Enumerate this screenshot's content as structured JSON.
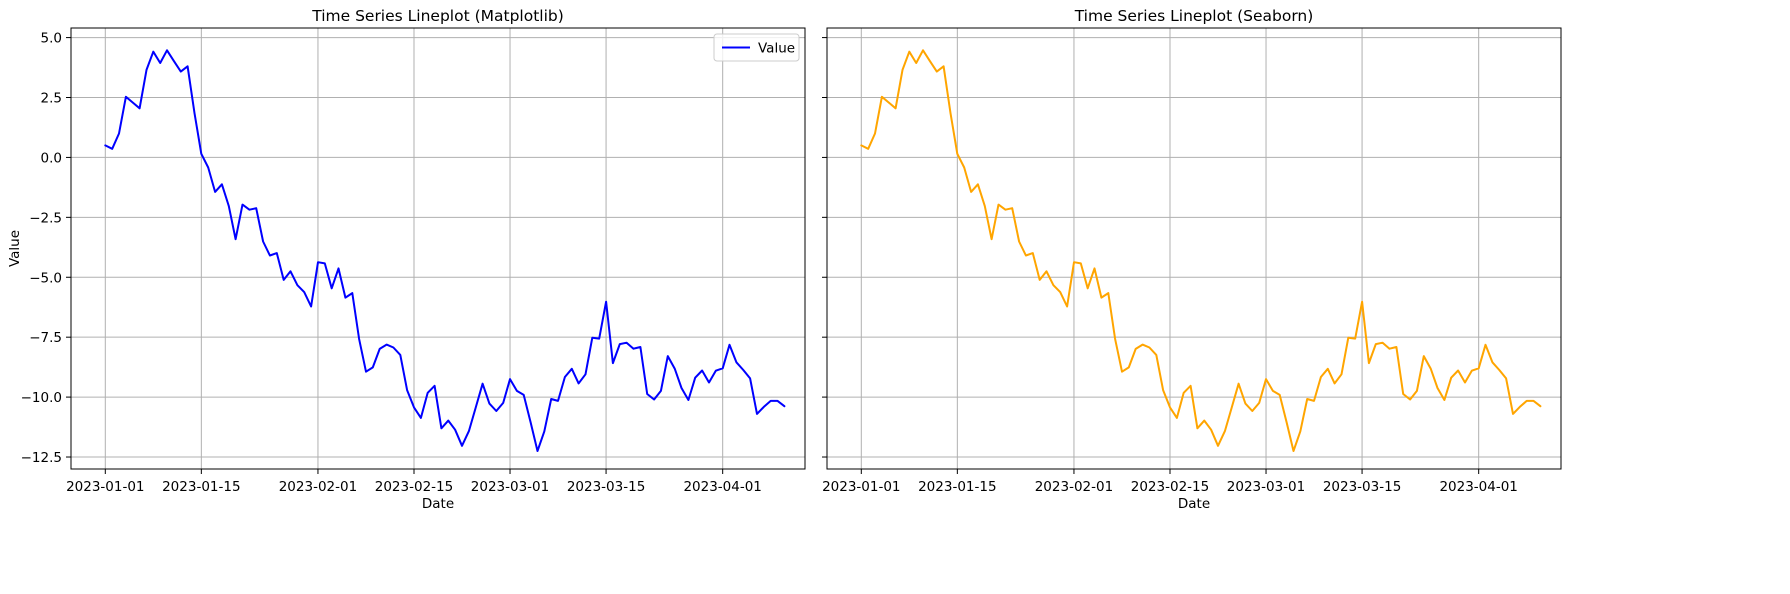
{
  "chart_data": [
    {
      "type": "line",
      "title": "Time Series Lineplot (Matplotlib)",
      "xlabel": "Date",
      "ylabel": "Value",
      "color": "#0000ff",
      "legend": {
        "entries": [
          "Value"
        ],
        "placement": "upper right"
      },
      "grid": true,
      "xlim": [
        "2022-12-27",
        "2023-04-13"
      ],
      "ylim": [
        -13.0,
        5.4
      ],
      "x_ticks": [
        "2023-01-01",
        "2023-01-15",
        "2023-02-01",
        "2023-02-15",
        "2023-03-01",
        "2023-03-15",
        "2023-04-01"
      ],
      "y_ticks": [
        "5.0",
        "2.5",
        "0.0",
        "−2.5",
        "−5.0",
        "−7.5",
        "−10.0",
        "−12.5"
      ],
      "series": [
        {
          "name": "Value",
          "start_date": "2023-01-01",
          "frequency": "daily",
          "values": [
            0.5,
            0.36,
            1.0,
            2.53,
            2.29,
            2.05,
            3.65,
            4.41,
            3.94,
            4.47,
            4.02,
            3.58,
            3.8,
            1.85,
            0.15,
            -0.42,
            -1.44,
            -1.12,
            -2.03,
            -3.41,
            -1.97,
            -2.18,
            -2.12,
            -3.51,
            -4.09,
            -3.99,
            -5.11,
            -4.75,
            -5.33,
            -5.62,
            -6.22,
            -4.37,
            -4.42,
            -5.46,
            -4.63,
            -5.85,
            -5.66,
            -7.57,
            -8.94,
            -8.76,
            -7.99,
            -7.81,
            -7.93,
            -8.24,
            -9.71,
            -10.43,
            -10.87,
            -9.82,
            -9.53,
            -11.3,
            -10.98,
            -11.36,
            -12.03,
            -11.42,
            -10.44,
            -9.44,
            -10.27,
            -10.58,
            -10.24,
            -9.25,
            -9.74,
            -9.91,
            -11.05,
            -12.25,
            -11.43,
            -10.08,
            -10.16,
            -9.16,
            -8.82,
            -9.43,
            -9.05,
            -7.52,
            -7.56,
            -6.02,
            -8.58,
            -7.79,
            -7.73,
            -7.98,
            -7.91,
            -9.87,
            -10.1,
            -9.74,
            -8.29,
            -8.81,
            -9.62,
            -10.12,
            -9.19,
            -8.89,
            -9.39,
            -8.9,
            -8.8,
            -7.82,
            -8.55,
            -8.87,
            -9.22,
            -10.7,
            -10.41,
            -10.16,
            -10.16,
            -10.38
          ]
        }
      ]
    },
    {
      "type": "line",
      "title": "Time Series Lineplot (Seaborn)",
      "xlabel": "Date",
      "ylabel": "",
      "color": "#ffa500",
      "grid": true,
      "xlim": [
        "2022-12-27",
        "2023-04-13"
      ],
      "ylim": [
        -13.0,
        5.4
      ],
      "x_ticks": [
        "2023-01-01",
        "2023-01-15",
        "2023-02-01",
        "2023-02-15",
        "2023-03-01",
        "2023-03-15",
        "2023-04-01"
      ],
      "series": [
        {
          "start_date": "2023-01-01",
          "frequency": "daily",
          "values": [
            0.5,
            0.36,
            1.0,
            2.53,
            2.29,
            2.05,
            3.65,
            4.41,
            3.94,
            4.47,
            4.02,
            3.58,
            3.8,
            1.85,
            0.15,
            -0.42,
            -1.44,
            -1.12,
            -2.03,
            -3.41,
            -1.97,
            -2.18,
            -2.12,
            -3.51,
            -4.09,
            -3.99,
            -5.11,
            -4.75,
            -5.33,
            -5.62,
            -6.22,
            -4.37,
            -4.42,
            -5.46,
            -4.63,
            -5.85,
            -5.66,
            -7.57,
            -8.94,
            -8.76,
            -7.99,
            -7.81,
            -7.93,
            -8.24,
            -9.71,
            -10.43,
            -10.87,
            -9.82,
            -9.53,
            -11.3,
            -10.98,
            -11.36,
            -12.03,
            -11.42,
            -10.44,
            -9.44,
            -10.27,
            -10.58,
            -10.24,
            -9.25,
            -9.74,
            -9.91,
            -11.05,
            -12.25,
            -11.43,
            -10.08,
            -10.16,
            -9.16,
            -8.82,
            -9.43,
            -9.05,
            -7.52,
            -7.56,
            -6.02,
            -8.58,
            -7.79,
            -7.73,
            -7.98,
            -7.91,
            -9.87,
            -10.1,
            -9.74,
            -8.29,
            -8.81,
            -9.62,
            -10.12,
            -9.19,
            -8.89,
            -9.39,
            -8.9,
            -8.8,
            -7.82,
            -8.55,
            -8.87,
            -9.22,
            -10.7,
            -10.41,
            -10.16,
            -10.16,
            -10.38
          ]
        }
      ]
    }
  ]
}
